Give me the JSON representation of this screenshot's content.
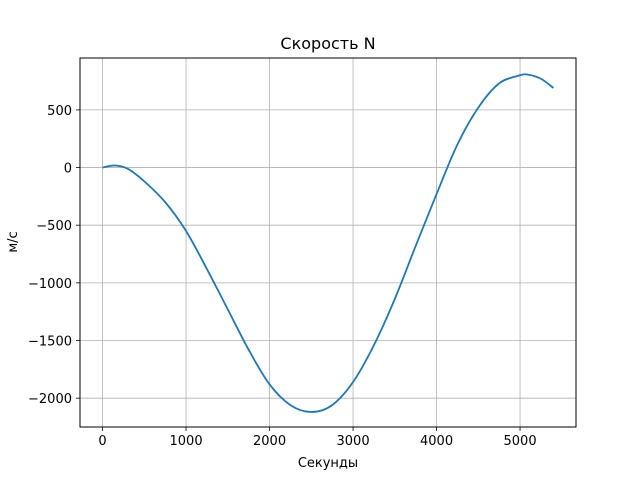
{
  "chart_data": {
    "type": "line",
    "title": "Скорость N",
    "xlabel": "Секунды",
    "ylabel": "м/с",
    "xlim": [
      -270,
      5670
    ],
    "ylim": [
      -2250,
      950
    ],
    "xticks": [
      0,
      1000,
      2000,
      3000,
      4000,
      5000
    ],
    "xtick_labels": [
      "0",
      "1000",
      "2000",
      "3000",
      "4000",
      "5000"
    ],
    "yticks": [
      -2000,
      -1500,
      -1000,
      -500,
      0,
      500
    ],
    "ytick_labels": [
      "−2000",
      "−1500",
      "−1000",
      "−500",
      "0",
      "500"
    ],
    "grid": true,
    "series": [
      {
        "color": "#1f77b4",
        "x": [
          0,
          150,
          300,
          500,
          750,
          1000,
          1250,
          1500,
          1750,
          2000,
          2250,
          2500,
          2750,
          3000,
          3250,
          3500,
          3750,
          4000,
          4250,
          4500,
          4750,
          5000,
          5100,
          5250,
          5400
        ],
        "y": [
          0,
          18,
          -10,
          -120,
          -300,
          -550,
          -880,
          -1230,
          -1580,
          -1880,
          -2060,
          -2120,
          -2060,
          -1860,
          -1540,
          -1140,
          -680,
          -230,
          200,
          520,
          730,
          800,
          805,
          770,
          690
        ]
      }
    ]
  }
}
